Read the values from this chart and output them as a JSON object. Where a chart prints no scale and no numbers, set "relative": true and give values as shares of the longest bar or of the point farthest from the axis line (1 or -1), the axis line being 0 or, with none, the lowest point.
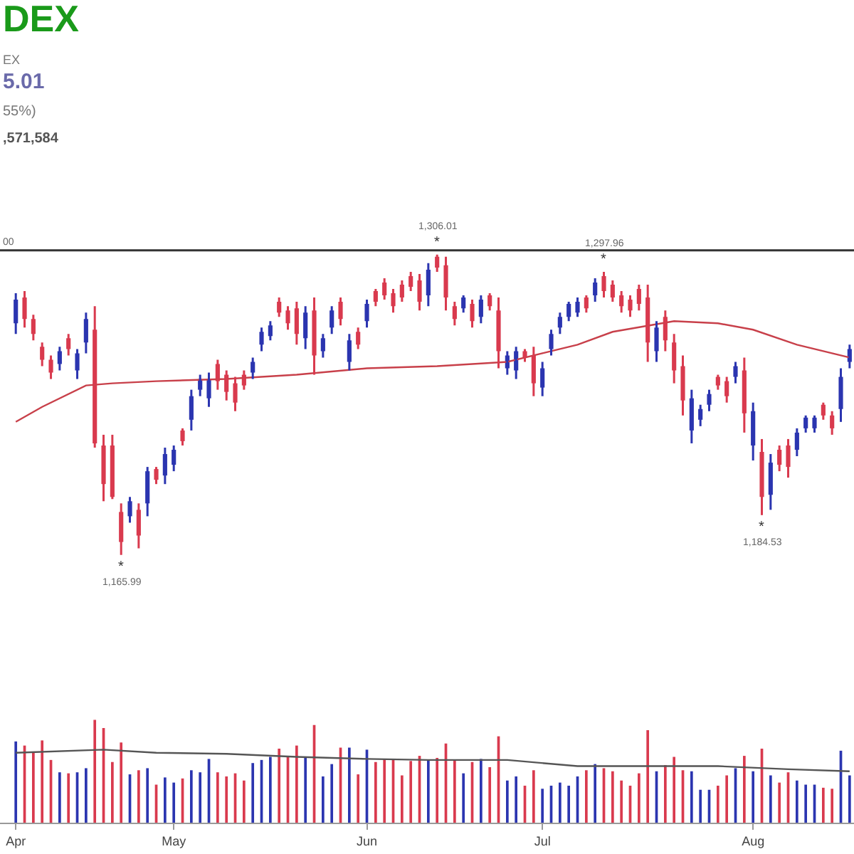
{
  "chart_data": [
    {
      "type": "candlestick",
      "title": "DEX",
      "categories": [
        null,
        null,
        null,
        null,
        null,
        null,
        null,
        null,
        null,
        null,
        null,
        null,
        null,
        null,
        null,
        null,
        null,
        null,
        null,
        null,
        null,
        null,
        null,
        null,
        null,
        null,
        null,
        null,
        null,
        null,
        null,
        null,
        null,
        null,
        null,
        null,
        null,
        null,
        null,
        null,
        null,
        null,
        null,
        null,
        null,
        null,
        null,
        null,
        null,
        null,
        null,
        null,
        null,
        null,
        null,
        null,
        null,
        null,
        null,
        null,
        null,
        null,
        null,
        null,
        null,
        null,
        null,
        null,
        null,
        null,
        null,
        null,
        null,
        null,
        null,
        null,
        null,
        null,
        null,
        null,
        null,
        null,
        null,
        null,
        null,
        null,
        null,
        null,
        null,
        null,
        null,
        null,
        null,
        null,
        null,
        null
      ],
      "annotations": [
        "EX",
        "5.01",
        "55%)",
        ",571,584",
        {
          "text": "*",
          "y": 1306.01
        },
        {
          "text": "1,306.01",
          "y": 1306.01
        },
        {
          "text": "*",
          "y": 1297.96
        },
        {
          "text": "1,297.96",
          "y": 1297.96
        },
        {
          "text": "*",
          "y": 1165.99
        },
        {
          "text": "1,165.99",
          "y": 1165.99
        },
        {
          "text": "*",
          "y": 1184.53
        },
        {
          "text": "1,184.53",
          "y": 1184.53
        },
        {
          "text": "00",
          "y": 1308
        }
      ],
      "ohlc": [
        [
          1274,
          1288,
          1269,
          1285
        ],
        [
          1286,
          1289,
          1272,
          1276
        ],
        [
          1276,
          1278,
          1266,
          1269
        ],
        [
          1263,
          1265,
          1254,
          1257
        ],
        [
          1257,
          1259,
          1248,
          1251
        ],
        [
          1255,
          1263,
          1252,
          1261
        ],
        [
          1267,
          1269,
          1259,
          1262
        ],
        [
          1252,
          1262,
          1248,
          1260
        ],
        [
          1265,
          1279,
          1260,
          1276
        ],
        [
          1271,
          1282,
          1216,
          1218
        ],
        [
          1217,
          1222,
          1191,
          1199
        ],
        [
          1217,
          1222,
          1192,
          1193
        ],
        [
          1186,
          1190,
          1165.99,
          1172
        ],
        [
          1184,
          1193,
          1181,
          1191
        ],
        [
          1187,
          1190,
          1169,
          1175
        ],
        [
          1190,
          1207,
          1184,
          1205
        ],
        [
          1206,
          1207,
          1199,
          1201
        ],
        [
          1203,
          1216,
          1199,
          1213
        ],
        [
          1208,
          1217,
          1205,
          1215
        ],
        [
          1224,
          1225,
          1217,
          1219
        ],
        [
          1229,
          1243,
          1224,
          1240
        ],
        [
          1243,
          1250,
          1240,
          1248
        ],
        [
          1239,
          1251,
          1235,
          1248
        ],
        [
          1255,
          1257,
          1243,
          1247
        ],
        [
          1250,
          1252,
          1238,
          1242
        ],
        [
          1246,
          1249,
          1233,
          1237
        ],
        [
          1250,
          1252,
          1243,
          1245
        ],
        [
          1251,
          1258,
          1248,
          1256
        ],
        [
          1264,
          1272,
          1261,
          1270
        ],
        [
          1268,
          1275,
          1266,
          1273
        ],
        [
          1284,
          1286,
          1277,
          1279
        ],
        [
          1280,
          1282,
          1271,
          1274
        ],
        [
          1281,
          1284,
          1264,
          1269
        ],
        [
          1267,
          1282,
          1262,
          1279
        ],
        [
          1280,
          1286,
          1250,
          1259
        ],
        [
          1261,
          1269,
          1258,
          1267
        ],
        [
          1272,
          1282,
          1269,
          1280
        ],
        [
          1284,
          1286,
          1273,
          1276
        ],
        [
          1256,
          1269,
          1252,
          1266
        ],
        [
          1270,
          1272,
          1262,
          1264
        ],
        [
          1275,
          1285,
          1272,
          1283
        ],
        [
          1289,
          1290,
          1282,
          1284
        ],
        [
          1293,
          1295,
          1285,
          1287
        ],
        [
          1288,
          1290,
          1279,
          1282
        ],
        [
          1292,
          1294,
          1284,
          1286
        ],
        [
          1296,
          1298,
          1289,
          1291
        ],
        [
          1294,
          1297,
          1280,
          1284
        ],
        [
          1287,
          1302,
          1282,
          1299
        ],
        [
          1305,
          1306.01,
          1298,
          1300
        ],
        [
          1301,
          1305,
          1280,
          1286
        ],
        [
          1282,
          1284,
          1273,
          1276
        ],
        [
          1281,
          1287,
          1279,
          1286
        ],
        [
          1283,
          1285,
          1272,
          1275
        ],
        [
          1277,
          1287,
          1274,
          1285
        ],
        [
          1287,
          1288,
          1280,
          1282
        ],
        [
          1280,
          1286,
          1253,
          1261
        ],
        [
          1253,
          1261,
          1250,
          1259
        ],
        [
          1252,
          1263,
          1248,
          1261
        ],
        [
          1261,
          1262,
          1256,
          1258
        ],
        [
          1259,
          1263,
          1240,
          1246
        ],
        [
          1244,
          1256,
          1240,
          1253
        ],
        [
          1262,
          1271,
          1259,
          1269
        ],
        [
          1272,
          1279,
          1269,
          1277
        ],
        [
          1277,
          1284,
          1275,
          1283
        ],
        [
          1279,
          1286,
          1277,
          1284
        ],
        [
          1286,
          1287,
          1279,
          1281
        ],
        [
          1287,
          1295,
          1284,
          1293
        ],
        [
          1296,
          1297.96,
          1286,
          1289
        ],
        [
          1292,
          1294,
          1284,
          1286
        ],
        [
          1287,
          1289,
          1279,
          1282
        ],
        [
          1285,
          1287,
          1277,
          1280
        ],
        [
          1290,
          1292,
          1280,
          1283
        ],
        [
          1286,
          1292,
          1256,
          1265
        ],
        [
          1261,
          1275,
          1256,
          1272
        ],
        [
          1277,
          1280,
          1261,
          1266
        ],
        [
          1265,
          1269,
          1246,
          1252
        ],
        [
          1254,
          1259,
          1231,
          1238
        ],
        [
          1224,
          1243,
          1218,
          1239
        ],
        [
          1229,
          1236,
          1226,
          1234
        ],
        [
          1236,
          1243,
          1233,
          1241
        ],
        [
          1249,
          1250,
          1243,
          1245
        ],
        [
          1247,
          1249,
          1237,
          1240
        ],
        [
          1249,
          1256,
          1246,
          1254
        ],
        [
          1252,
          1258,
          1223,
          1232
        ],
        [
          1217,
          1237,
          1210,
          1233
        ],
        [
          1214,
          1220,
          1184.53,
          1193
        ],
        [
          1194,
          1213,
          1187,
          1209
        ],
        [
          1215,
          1217,
          1205,
          1208
        ],
        [
          1217,
          1220,
          1202,
          1207
        ],
        [
          1215,
          1225,
          1212,
          1223
        ],
        [
          1225,
          1231,
          1223,
          1230
        ],
        [
          1225,
          1231,
          1223,
          1230
        ],
        [
          1236,
          1237,
          1229,
          1231
        ],
        [
          1231,
          1233,
          1222,
          1225
        ],
        [
          1234,
          1253,
          1228,
          1249
        ],
        [
          1256,
          1264,
          1253,
          1262
        ]
      ],
      "colors": [
        "#2b35b0",
        "#d93a4e",
        "#d93a4e",
        "#d93a4e",
        "#d93a4e",
        "#2b35b0",
        "#d93a4e",
        "#2b35b0",
        "#2b35b0",
        "#d93a4e",
        "#d93a4e",
        "#d93a4e",
        "#d93a4e",
        "#2b35b0",
        "#d93a4e",
        "#2b35b0",
        "#d93a4e",
        "#2b35b0",
        "#2b35b0",
        "#d93a4e",
        "#2b35b0",
        "#2b35b0",
        "#2b35b0",
        "#d93a4e",
        "#d93a4e",
        "#d93a4e",
        "#d93a4e",
        "#2b35b0",
        "#2b35b0",
        "#2b35b0",
        "#d93a4e",
        "#d93a4e",
        "#d93a4e",
        "#2b35b0",
        "#d93a4e",
        "#2b35b0",
        "#2b35b0",
        "#d93a4e",
        "#2b35b0",
        "#d93a4e",
        "#2b35b0",
        "#d93a4e",
        "#d93a4e",
        "#d93a4e",
        "#d93a4e",
        "#d93a4e",
        "#d93a4e",
        "#2b35b0",
        "#d93a4e",
        "#d93a4e",
        "#d93a4e",
        "#2b35b0",
        "#d93a4e",
        "#2b35b0",
        "#d93a4e",
        "#d93a4e",
        "#2b35b0",
        "#2b35b0",
        "#d93a4e",
        "#d93a4e",
        "#2b35b0",
        "#2b35b0",
        "#2b35b0",
        "#2b35b0",
        "#2b35b0",
        "#d93a4e",
        "#2b35b0",
        "#d93a4e",
        "#d93a4e",
        "#d93a4e",
        "#d93a4e",
        "#d93a4e",
        "#d93a4e",
        "#2b35b0",
        "#d93a4e",
        "#d93a4e",
        "#d93a4e",
        "#2b35b0",
        "#2b35b0",
        "#2b35b0",
        "#d93a4e",
        "#d93a4e",
        "#2b35b0",
        "#d93a4e",
        "#2b35b0",
        "#d93a4e",
        "#2b35b0",
        "#d93a4e",
        "#d93a4e",
        "#2b35b0",
        "#2b35b0",
        "#2b35b0",
        "#d93a4e",
        "#d93a4e",
        "#2b35b0",
        "#2b35b0"
      ],
      "series": [
        {
          "type": "line",
          "color": "#c8404a",
          "values": [
            1228,
            null,
            null,
            1235,
            null,
            null,
            null,
            null,
            1245,
            null,
            null,
            1246,
            null,
            null,
            null,
            null,
            1247,
            null,
            null,
            null,
            null,
            null,
            null,
            null,
            1248,
            null,
            null,
            null,
            null,
            null,
            null,
            null,
            1250,
            null,
            null,
            null,
            null,
            null,
            null,
            null,
            1253,
            null,
            null,
            null,
            null,
            null,
            null,
            null,
            1254,
            null,
            null,
            null,
            null,
            null,
            null,
            null,
            1256,
            null,
            null,
            null,
            1260,
            null,
            null,
            null,
            1264,
            null,
            null,
            null,
            1270,
            null,
            null,
            null,
            null,
            null,
            null,
            1275,
            null,
            null,
            null,
            null,
            1274,
            null,
            null,
            null,
            1271,
            null,
            null,
            null,
            null,
            1264,
            null,
            null,
            null,
            null,
            1259,
            1258
          ]
        }
      ],
      "ref_lines": [
        {
          "axis": "y",
          "value": 1308,
          "color": "#333333"
        }
      ],
      "tick_labels": false
    },
    {
      "type": "bar",
      "relative": true,
      "categories": [
        "Apr",
        null,
        null,
        null,
        null,
        null,
        null,
        null,
        null,
        null,
        null,
        null,
        null,
        null,
        null,
        null,
        null,
        null,
        "May",
        null,
        null,
        null,
        null,
        null,
        null,
        null,
        null,
        null,
        null,
        null,
        null,
        null,
        null,
        null,
        null,
        null,
        null,
        null,
        null,
        null,
        "Jun",
        null,
        null,
        null,
        null,
        null,
        null,
        null,
        null,
        null,
        null,
        null,
        null,
        null,
        null,
        null,
        null,
        null,
        null,
        null,
        "Jul",
        null,
        null,
        null,
        null,
        null,
        null,
        null,
        null,
        null,
        null,
        null,
        null,
        null,
        null,
        null,
        null,
        null,
        null,
        null,
        null,
        null,
        null,
        null,
        "Aug",
        null,
        null,
        null,
        null,
        null,
        null,
        null,
        null,
        null,
        null,
        null
      ],
      "values": [
        0.79,
        0.75,
        0.69,
        0.8,
        0.61,
        0.49,
        0.48,
        0.49,
        0.53,
        1.0,
        0.92,
        0.59,
        0.78,
        0.47,
        0.51,
        0.53,
        0.37,
        0.44,
        0.39,
        0.43,
        0.51,
        0.49,
        0.62,
        0.49,
        0.45,
        0.48,
        0.41,
        0.58,
        0.61,
        0.64,
        0.72,
        0.65,
        0.75,
        0.64,
        0.95,
        0.45,
        0.57,
        0.73,
        0.73,
        0.47,
        0.71,
        0.59,
        0.62,
        0.61,
        0.46,
        0.6,
        0.65,
        0.61,
        0.63,
        0.77,
        0.61,
        0.48,
        0.59,
        0.62,
        0.54,
        0.84,
        0.41,
        0.45,
        0.36,
        0.51,
        0.33,
        0.36,
        0.39,
        0.36,
        0.45,
        0.51,
        0.57,
        0.53,
        0.5,
        0.41,
        0.36,
        0.48,
        0.9,
        0.5,
        0.56,
        0.64,
        0.51,
        0.5,
        0.32,
        0.32,
        0.36,
        0.46,
        0.53,
        0.65,
        0.5,
        0.72,
        0.46,
        0.39,
        0.49,
        0.41,
        0.37,
        0.37,
        0.34,
        0.33,
        0.7,
        0.46
      ],
      "colors": [
        "#2b35b0",
        "#d93a4e",
        "#d93a4e",
        "#d93a4e",
        "#d93a4e",
        "#2b35b0",
        "#d93a4e",
        "#2b35b0",
        "#2b35b0",
        "#d93a4e",
        "#d93a4e",
        "#d93a4e",
        "#d93a4e",
        "#2b35b0",
        "#d93a4e",
        "#2b35b0",
        "#d93a4e",
        "#2b35b0",
        "#2b35b0",
        "#d93a4e",
        "#2b35b0",
        "#2b35b0",
        "#2b35b0",
        "#d93a4e",
        "#d93a4e",
        "#d93a4e",
        "#d93a4e",
        "#2b35b0",
        "#2b35b0",
        "#2b35b0",
        "#d93a4e",
        "#d93a4e",
        "#d93a4e",
        "#2b35b0",
        "#d93a4e",
        "#2b35b0",
        "#2b35b0",
        "#d93a4e",
        "#2b35b0",
        "#d93a4e",
        "#2b35b0",
        "#d93a4e",
        "#d93a4e",
        "#d93a4e",
        "#d93a4e",
        "#d93a4e",
        "#d93a4e",
        "#2b35b0",
        "#d93a4e",
        "#d93a4e",
        "#d93a4e",
        "#2b35b0",
        "#d93a4e",
        "#2b35b0",
        "#d93a4e",
        "#d93a4e",
        "#2b35b0",
        "#2b35b0",
        "#d93a4e",
        "#d93a4e",
        "#2b35b0",
        "#2b35b0",
        "#2b35b0",
        "#2b35b0",
        "#2b35b0",
        "#d93a4e",
        "#2b35b0",
        "#d93a4e",
        "#d93a4e",
        "#d93a4e",
        "#d93a4e",
        "#d93a4e",
        "#d93a4e",
        "#2b35b0",
        "#d93a4e",
        "#d93a4e",
        "#d93a4e",
        "#2b35b0",
        "#2b35b0",
        "#2b35b0",
        "#d93a4e",
        "#d93a4e",
        "#2b35b0",
        "#d93a4e",
        "#2b35b0",
        "#d93a4e",
        "#2b35b0",
        "#d93a4e",
        "#d93a4e",
        "#2b35b0",
        "#2b35b0",
        "#2b35b0",
        "#d93a4e",
        "#d93a4e",
        "#2b35b0",
        "#2b35b0"
      ],
      "series": [
        {
          "type": "line",
          "color": "#555555",
          "values": [
            0.68,
            null,
            null,
            null,
            null,
            null,
            null,
            null,
            null,
            null,
            0.71,
            null,
            null,
            null,
            null,
            null,
            0.68,
            null,
            null,
            null,
            null,
            null,
            null,
            null,
            0.67,
            null,
            null,
            null,
            null,
            null,
            null,
            null,
            0.64,
            null,
            null,
            null,
            null,
            null,
            null,
            null,
            0.62,
            null,
            null,
            null,
            null,
            null,
            null,
            0.61,
            null,
            null,
            null,
            null,
            null,
            null,
            null,
            null,
            0.61,
            null,
            null,
            null,
            null,
            null,
            null,
            null,
            0.55,
            null,
            null,
            null,
            null,
            null,
            null,
            null,
            0.55,
            null,
            null,
            null,
            null,
            null,
            null,
            null,
            0.55,
            null,
            null,
            null,
            null,
            null,
            null,
            null,
            0.52,
            null,
            null,
            null,
            null,
            null,
            null,
            0.5
          ]
        }
      ]
    }
  ]
}
